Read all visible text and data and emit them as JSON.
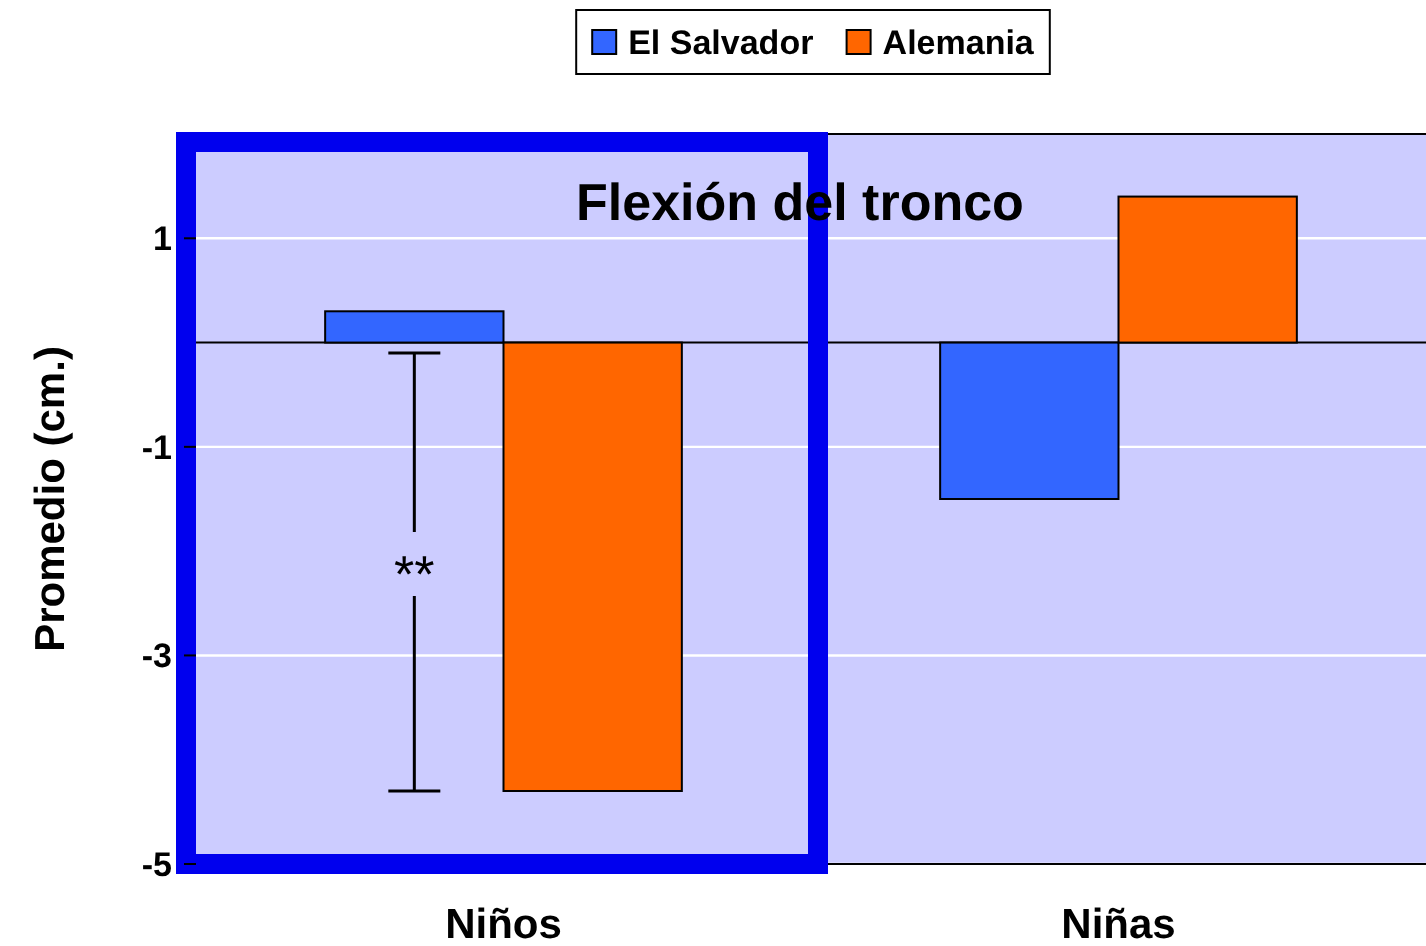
{
  "chart_data": {
    "type": "bar",
    "title": "Flexión del tronco",
    "ylabel": "Promedio (cm.)",
    "categories": [
      "Niños",
      "Niñas"
    ],
    "series": [
      {
        "name": "El Salvador",
        "color": "#3366ff",
        "values": [
          0.3,
          -1.5
        ]
      },
      {
        "name": "Alemania",
        "color": "#ff6600",
        "values": [
          -4.3,
          1.4
        ]
      }
    ],
    "ylim": [
      -5,
      2
    ],
    "yticks": [
      -5,
      -3,
      -1,
      1
    ],
    "grid": "y",
    "legend": "top",
    "annotations": [
      {
        "text": "**",
        "x": "Niños",
        "y": -2.2
      }
    ]
  }
}
